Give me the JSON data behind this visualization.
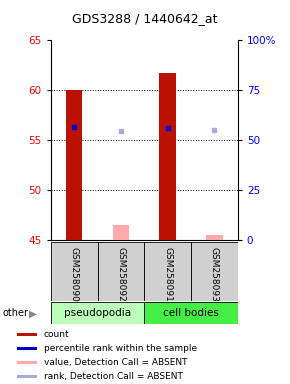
{
  "title": "GDS3288 / 1440642_at",
  "samples": [
    "GSM258090",
    "GSM258092",
    "GSM258091",
    "GSM258093"
  ],
  "ylim": [
    45,
    65
  ],
  "y2lim": [
    0,
    100
  ],
  "yticks": [
    45,
    50,
    55,
    60,
    65
  ],
  "y2ticks": [
    0,
    25,
    50,
    75,
    100
  ],
  "bar_color_present": "#bb1100",
  "bar_color_absent": "#ffaaaa",
  "dot_color_present": "#0000cc",
  "dot_color_absent": "#aaaadd",
  "bar_values": [
    60.0,
    46.5,
    61.7,
    45.5
  ],
  "bar_absent": [
    false,
    true,
    false,
    true
  ],
  "dot_values_pct": [
    56.5,
    54.5,
    56.0,
    55.0
  ],
  "dot_absent": [
    false,
    true,
    false,
    true
  ],
  "bar_base": 45,
  "bar_width": 0.35,
  "legend_items": [
    {
      "label": "count",
      "color": "#bb1100"
    },
    {
      "label": "percentile rank within the sample",
      "color": "#0000cc"
    },
    {
      "label": "value, Detection Call = ABSENT",
      "color": "#ffaaaa"
    },
    {
      "label": "rank, Detection Call = ABSENT",
      "color": "#aaaadd"
    }
  ],
  "group_info": [
    {
      "label": "pseudopodia",
      "start": 0,
      "end": 2,
      "color": "#bbffbb"
    },
    {
      "label": "cell bodies",
      "start": 2,
      "end": 4,
      "color": "#44ee44"
    }
  ],
  "gridline_yticks": [
    50,
    55,
    60
  ],
  "other_label": "other"
}
